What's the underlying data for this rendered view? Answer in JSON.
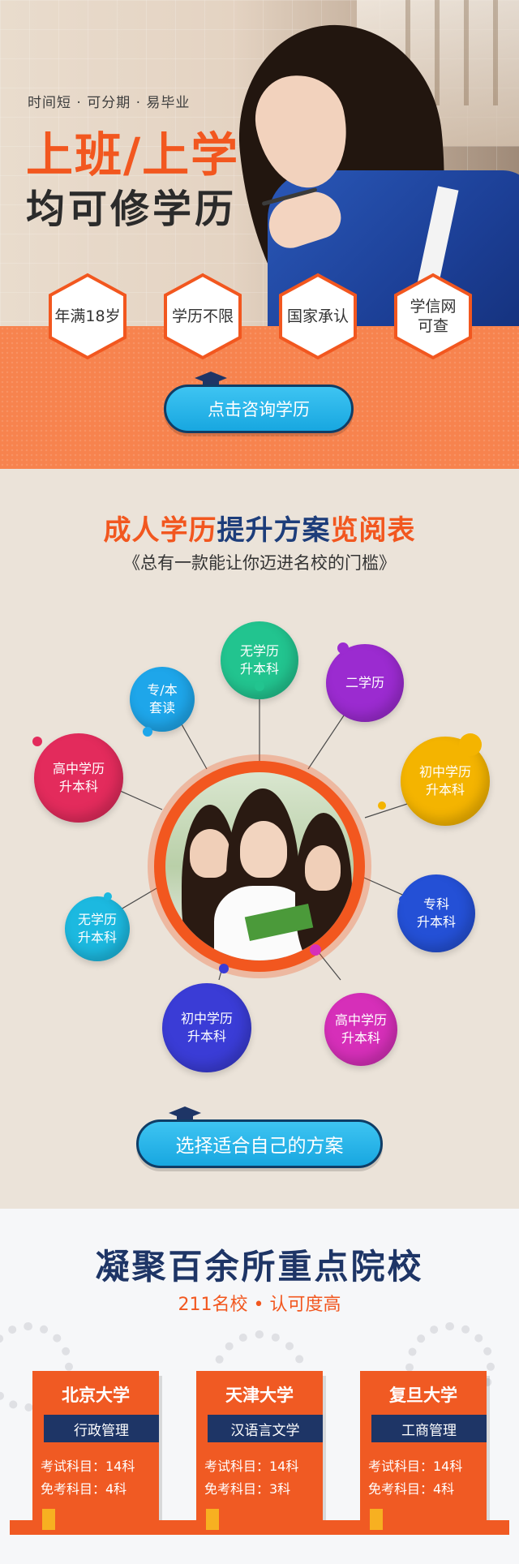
{
  "hero": {
    "tagline": "时间短 · 可分期 · 易毕业",
    "title_line1": "上班/上学",
    "title_line2": "均可修学历",
    "badges": [
      "年满18岁",
      "学历不限",
      "国家承认",
      "学信网\n可查"
    ],
    "cta_label": "点击咨询学历"
  },
  "plans": {
    "title_part1": "成人学历",
    "title_part2": "提升方案",
    "title_part3": "览阅表",
    "subtitle": "《总有一款能让你迈进名校的门槛》",
    "bubbles": [
      {
        "label": "无学历\n升本科",
        "color": "#22c48f"
      },
      {
        "label": "二学历",
        "color": "#9b2bd0"
      },
      {
        "label": "专/本\n套读",
        "color": "#1ea6ea"
      },
      {
        "label": "初中学历\n升本科",
        "color": "#f4b400"
      },
      {
        "label": "高中学历\n升本科",
        "color": "#e32b5c"
      },
      {
        "label": "专科\n升本科",
        "color": "#2450d6"
      },
      {
        "label": "无学历\n升本科",
        "color": "#1cb9e0"
      },
      {
        "label": "初中学历\n升本科",
        "color": "#3a3cd6"
      },
      {
        "label": "高中学历\n升本科",
        "color": "#d62fb9"
      }
    ],
    "cta_label": "选择适合自己的方案"
  },
  "schools": {
    "title": "凝聚百余所重点院校",
    "subtitle": "211名校 • 认可度高",
    "cards": [
      {
        "name": "北京大学",
        "major": "行政管理",
        "exam": "考试科目：14科",
        "exempt": "免考科目：4科"
      },
      {
        "name": "天津大学",
        "major": "汉语言文学",
        "exam": "考试科目：14科",
        "exempt": "免考科目：3科"
      },
      {
        "name": "复旦大学",
        "major": "工商管理",
        "exam": "考试科目：14科",
        "exempt": "免考科目：4科"
      }
    ]
  },
  "colors": {
    "accent": "#f2571f",
    "navy": "#1e3566",
    "button": "#1ea6ea"
  }
}
